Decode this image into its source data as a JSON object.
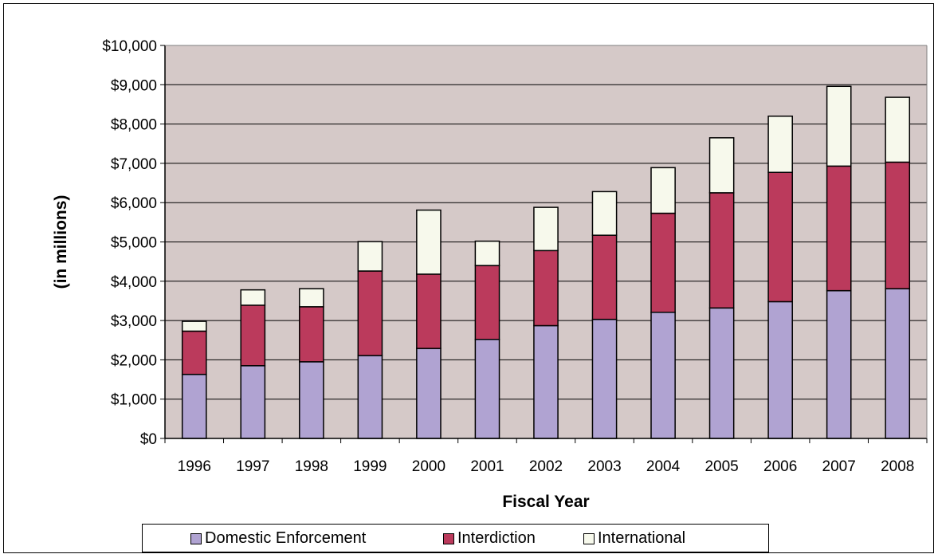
{
  "chart_data": {
    "type": "bar",
    "stacked": true,
    "categories": [
      "1996",
      "1997",
      "1998",
      "1999",
      "2000",
      "2001",
      "2002",
      "2003",
      "2004",
      "2005",
      "2006",
      "2007",
      "2008"
    ],
    "series": [
      {
        "name": "Domestic Enforcement",
        "color": "#b0a3d2",
        "values": [
          1630,
          1850,
          1950,
          2110,
          2290,
          2520,
          2870,
          3030,
          3210,
          3320,
          3480,
          3760,
          3810
        ]
      },
      {
        "name": "Interdiction",
        "color": "#bb3a5c",
        "values": [
          1100,
          1540,
          1400,
          2150,
          1890,
          1880,
          1910,
          2140,
          2520,
          2930,
          3290,
          3170,
          3220
        ]
      },
      {
        "name": "International",
        "color": "#f7f9ec",
        "values": [
          250,
          390,
          460,
          750,
          1630,
          620,
          1100,
          1110,
          1160,
          1400,
          1430,
          2030,
          1650
        ]
      }
    ],
    "xlabel": "Fiscal Year",
    "ylabel": "(in millions)",
    "ylim": [
      0,
      10000
    ],
    "yticks": [
      "$0",
      "$1,000",
      "$2,000",
      "$3,000",
      "$4,000",
      "$5,000",
      "$6,000",
      "$7,000",
      "$8,000",
      "$9,000",
      "$10,000"
    ],
    "grid": true,
    "legend_position": "bottom",
    "plot_background": "#d5c9c8"
  }
}
